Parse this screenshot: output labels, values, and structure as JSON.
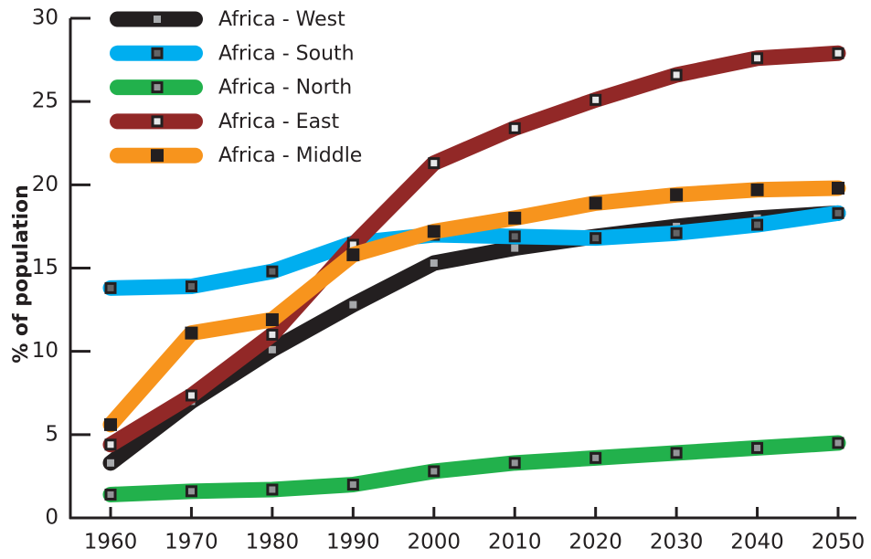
{
  "chart_data": {
    "type": "line",
    "title": "",
    "xlabel": "",
    "ylabel": "% of population",
    "x": [
      1960,
      1970,
      1980,
      1990,
      2000,
      2010,
      2020,
      2030,
      2040,
      2050
    ],
    "x_tick_labels": [
      "1960",
      "1970",
      "1980",
      "1990",
      "2000",
      "2010",
      "2020",
      "2030",
      "2040",
      "2050"
    ],
    "y_ticks": [
      0,
      5,
      10,
      15,
      20,
      25,
      30
    ],
    "y_tick_labels": [
      "0",
      "5",
      "10",
      "15",
      "20",
      "25",
      "30"
    ],
    "ylim": [
      0,
      30
    ],
    "xlim": [
      1960,
      2050
    ],
    "grid": false,
    "legend_position": "top-left",
    "series": [
      {
        "name": "Africa - West",
        "color": "#231f20",
        "marker": "small-gray-square",
        "values": [
          3.3,
          7.0,
          10.1,
          12.8,
          15.3,
          16.2,
          16.9,
          17.5,
          18.0,
          18.3
        ]
      },
      {
        "name": "Africa - South",
        "color": "#00aeef",
        "marker": "dark-gray-boxed-square",
        "values": [
          13.8,
          13.9,
          14.8,
          16.5,
          17.0,
          16.9,
          16.8,
          17.1,
          17.6,
          18.3
        ]
      },
      {
        "name": "Africa - North",
        "color": "#22b14c",
        "marker": "mid-gray-boxed-square",
        "values": [
          1.4,
          1.6,
          1.7,
          2.0,
          2.8,
          3.3,
          3.6,
          3.9,
          4.2,
          4.5
        ]
      },
      {
        "name": "Africa - East",
        "color": "#922827",
        "marker": "light-gray-boxed-square",
        "values": [
          4.4,
          7.35,
          11.0,
          16.4,
          21.3,
          23.4,
          25.1,
          26.6,
          27.6,
          27.9
        ]
      },
      {
        "name": "Africa - Middle",
        "color": "#f7941d",
        "marker": "solid-black-square",
        "values": [
          5.6,
          11.1,
          11.9,
          15.8,
          17.2,
          18.0,
          18.9,
          19.4,
          19.7,
          19.8
        ]
      }
    ]
  }
}
